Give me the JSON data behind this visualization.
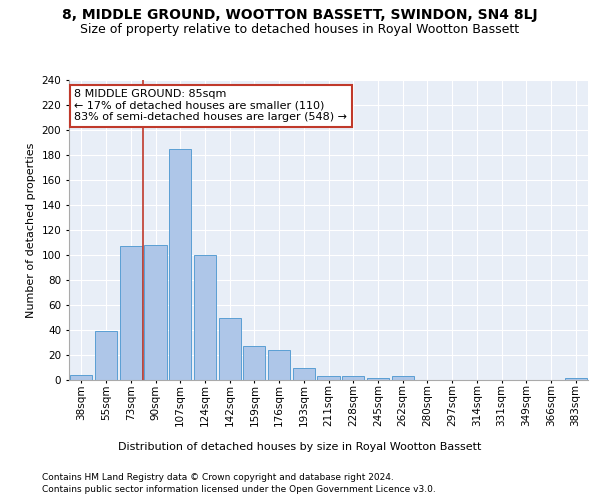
{
  "title": "8, MIDDLE GROUND, WOOTTON BASSETT, SWINDON, SN4 8LJ",
  "subtitle": "Size of property relative to detached houses in Royal Wootton Bassett",
  "xlabel_bottom": "Distribution of detached houses by size in Royal Wootton Bassett",
  "ylabel": "Number of detached properties",
  "footer1": "Contains HM Land Registry data © Crown copyright and database right 2024.",
  "footer2": "Contains public sector information licensed under the Open Government Licence v3.0.",
  "categories": [
    "38sqm",
    "55sqm",
    "73sqm",
    "90sqm",
    "107sqm",
    "124sqm",
    "142sqm",
    "159sqm",
    "176sqm",
    "193sqm",
    "211sqm",
    "228sqm",
    "245sqm",
    "262sqm",
    "280sqm",
    "297sqm",
    "314sqm",
    "331sqm",
    "349sqm",
    "366sqm",
    "383sqm"
  ],
  "values": [
    4,
    39,
    107,
    108,
    185,
    100,
    50,
    27,
    24,
    10,
    3,
    3,
    2,
    3,
    0,
    0,
    0,
    0,
    0,
    0,
    2
  ],
  "bar_color": "#aec6e8",
  "bar_edge_color": "#5a9fd4",
  "vline_x": 2.5,
  "vline_color": "#c0392b",
  "annotation_text": "8 MIDDLE GROUND: 85sqm\n← 17% of detached houses are smaller (110)\n83% of semi-detached houses are larger (548) →",
  "annotation_box_color": "#ffffff",
  "annotation_box_edge": "#c0392b",
  "ylim": [
    0,
    240
  ],
  "yticks": [
    0,
    20,
    40,
    60,
    80,
    100,
    120,
    140,
    160,
    180,
    200,
    220,
    240
  ],
  "plot_bg": "#e8eef7",
  "title_fontsize": 10,
  "subtitle_fontsize": 9,
  "footer_fontsize": 6.5,
  "ylabel_fontsize": 8,
  "tick_fontsize": 7.5,
  "annotation_fontsize": 8
}
